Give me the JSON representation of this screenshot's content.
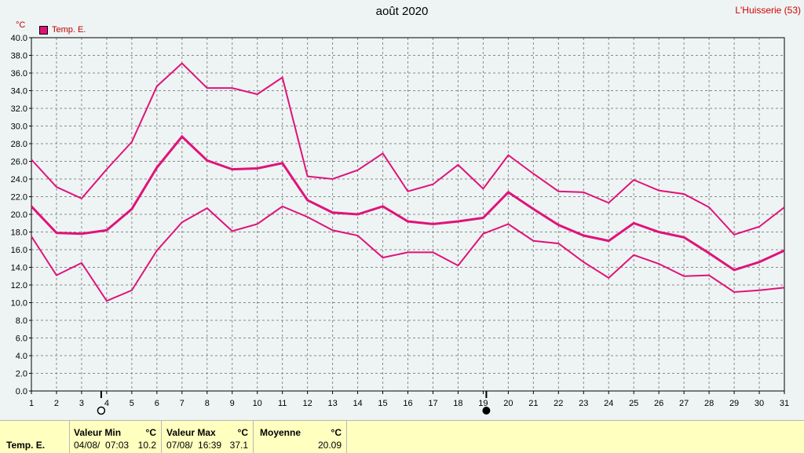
{
  "title": "août 2020",
  "station": "L'Huisserie (53)",
  "unit": "°C",
  "legend": {
    "label": "Temp. E.",
    "color": "#e0127a"
  },
  "moon": {
    "new_moon_day": 4,
    "full_moon_day": 19
  },
  "footer": {
    "series_label": "Temp. E.",
    "min": {
      "label": "Valeur Min",
      "unit": "°C",
      "datetime": "04/08/  07:03",
      "value": "10.2"
    },
    "max": {
      "label": "Valeur Max",
      "unit": "°C",
      "datetime": "07/08/  16:39",
      "value": "37.1"
    },
    "avg": {
      "label": "Moyenne",
      "unit": "°C",
      "value": "20.09"
    }
  },
  "chart_data": {
    "type": "line",
    "title": "août 2020",
    "ylabel": "°C",
    "xlim": [
      1,
      31
    ],
    "ylim": [
      0,
      40
    ],
    "y_ticks": [
      "0.0",
      "2.0",
      "4.0",
      "6.0",
      "8.0",
      "10.0",
      "12.0",
      "14.0",
      "16.0",
      "18.0",
      "20.0",
      "22.0",
      "24.0",
      "26.0",
      "28.0",
      "30.0",
      "32.0",
      "34.0",
      "36.0",
      "38.0",
      "40.0"
    ],
    "x": [
      1,
      2,
      3,
      4,
      5,
      6,
      7,
      8,
      9,
      10,
      11,
      12,
      13,
      14,
      15,
      16,
      17,
      18,
      19,
      20,
      21,
      22,
      23,
      24,
      25,
      26,
      27,
      28,
      29,
      30,
      31
    ],
    "grid": true,
    "color": "#e0127a",
    "series": [
      {
        "values": [
          26.2,
          23.1,
          21.8,
          25.1,
          28.2,
          34.5,
          37.1,
          34.3,
          34.3,
          33.6,
          35.5,
          24.3,
          24.0,
          25.0,
          26.9,
          22.6,
          23.4,
          25.6,
          22.9,
          26.7,
          24.6,
          22.6,
          22.5,
          21.3,
          23.9,
          22.7,
          22.3,
          20.8,
          17.7,
          18.6,
          20.8
        ]
      },
      {
        "values": [
          20.9,
          17.9,
          17.8,
          18.2,
          20.6,
          25.3,
          28.8,
          26.1,
          25.1,
          25.2,
          25.8,
          21.6,
          20.2,
          20.0,
          20.9,
          19.2,
          18.9,
          19.2,
          19.6,
          22.5,
          20.6,
          18.8,
          17.6,
          17.0,
          19.0,
          18.0,
          17.4,
          15.6,
          13.7,
          14.6,
          15.9
        ]
      },
      {
        "values": [
          17.5,
          13.1,
          14.5,
          10.2,
          11.4,
          15.9,
          19.1,
          20.7,
          18.1,
          18.9,
          20.9,
          19.7,
          18.2,
          17.6,
          15.1,
          15.7,
          15.7,
          14.2,
          17.8,
          18.9,
          17.0,
          16.7,
          14.6,
          12.8,
          15.4,
          14.4,
          13.0,
          13.1,
          11.2,
          11.4,
          11.7
        ]
      }
    ]
  }
}
